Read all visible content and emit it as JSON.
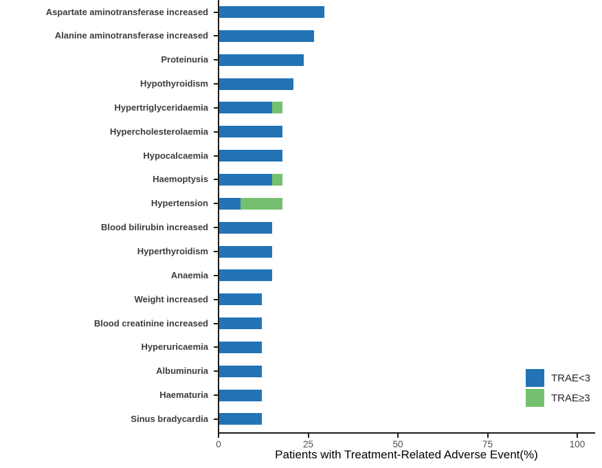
{
  "chart_data": {
    "type": "bar",
    "orientation": "horizontal",
    "stacked": true,
    "title": "",
    "xlabel": "Patients with Treatment-Related Adverse Event(%)",
    "ylabel": "",
    "xlim": [
      0,
      105
    ],
    "xticks": [
      "0",
      "25",
      "50",
      "75",
      "100"
    ],
    "xtick_values": [
      0,
      25,
      50,
      75,
      100
    ],
    "grid": false,
    "legend_position": "bottom-right",
    "categories": [
      "Aspartate aminotransferase increased",
      "Alanine aminotransferase increased",
      "Proteinuria",
      "Hypothyroidism",
      "Hypertriglyceridaemia",
      "Hypercholesterolaemia",
      "Hypocalcaemia",
      "Haemoptysis",
      "Hypertension",
      "Blood bilirubin increased",
      "Hyperthyroidism",
      "Anaemia",
      "Weight increased",
      "Blood creatinine increased",
      "Hyperuricaemia",
      "Albuminuria",
      "Haematuria",
      "Sinus bradycardia"
    ],
    "series": [
      {
        "name": "TRAE<3",
        "color": "#2273b5",
        "values": [
          29.4,
          26.5,
          23.5,
          20.6,
          14.7,
          17.6,
          17.6,
          14.7,
          5.9,
          14.7,
          14.7,
          14.7,
          11.8,
          11.8,
          11.8,
          11.8,
          11.8,
          11.8
        ]
      },
      {
        "name": "TRAE≥3",
        "color": "#74c06e",
        "values": [
          0,
          0,
          0,
          0,
          2.9,
          0,
          0,
          2.9,
          11.8,
          0,
          0,
          0,
          0,
          0,
          0,
          0,
          0,
          0
        ]
      }
    ],
    "colors": {
      "axis": "#1a1a1a",
      "category_label": "#3c3c3c",
      "tick_label": "#4d4d4d",
      "title": "#000000",
      "background": "#ffffff"
    }
  },
  "legend": {
    "items": [
      {
        "label": "TRAE<3",
        "color": "#2273b5"
      },
      {
        "label": "TRAE≥3",
        "color": "#74c06e"
      }
    ]
  }
}
